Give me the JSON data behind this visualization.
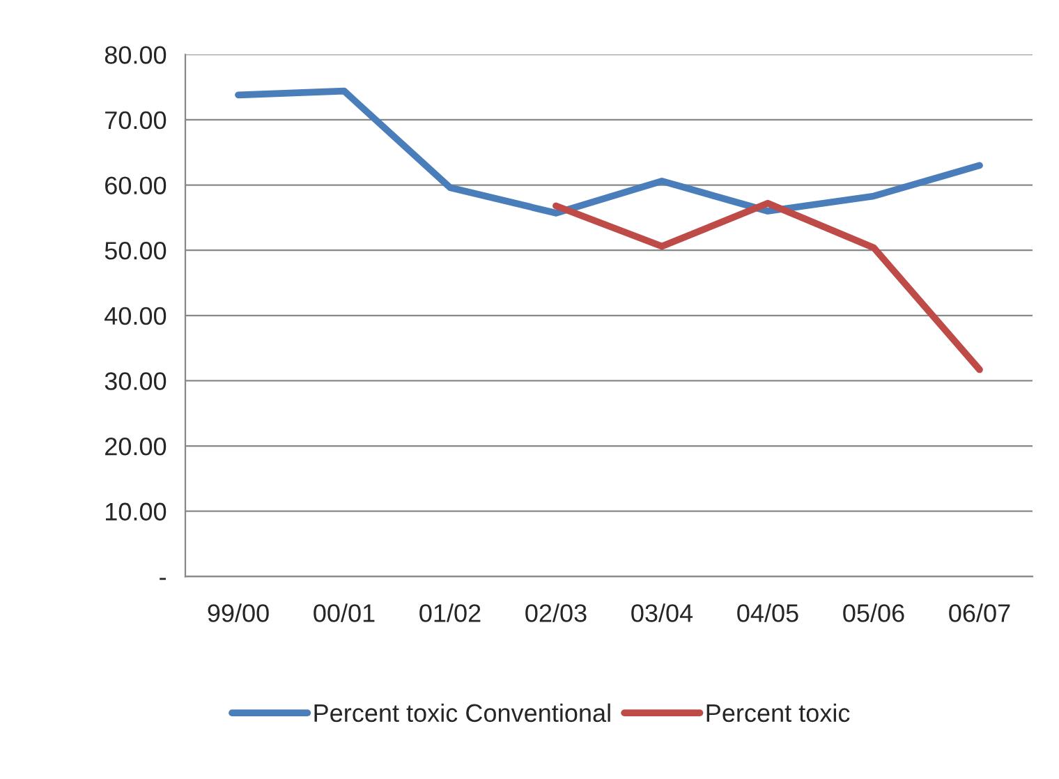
{
  "chart_data": {
    "type": "line",
    "categories": [
      "99/00",
      "00/01",
      "01/02",
      "02/03",
      "03/04",
      "04/05",
      "05/06",
      "06/07"
    ],
    "series": [
      {
        "name": "Percent toxic Conventional",
        "color": "#4a7ebb",
        "values": [
          73.8,
          74.4,
          59.6,
          55.7,
          60.6,
          56.0,
          58.3,
          63.0
        ]
      },
      {
        "name": "Percent toxic",
        "color": "#be4b48",
        "values": [
          null,
          null,
          null,
          56.8,
          50.6,
          57.2,
          50.4,
          31.7
        ]
      }
    ],
    "ylim": [
      0,
      80
    ],
    "yticks": [
      {
        "value": 0,
        "label": "-"
      },
      {
        "value": 10,
        "label": "10.00"
      },
      {
        "value": 20,
        "label": "20.00"
      },
      {
        "value": 30,
        "label": "30.00"
      },
      {
        "value": 40,
        "label": "40.00"
      },
      {
        "value": 50,
        "label": "50.00"
      },
      {
        "value": 60,
        "label": "60.00"
      },
      {
        "value": 70,
        "label": "70.00"
      },
      {
        "value": 80,
        "label": "80.00"
      }
    ],
    "grid": "y",
    "legend": "bottom",
    "marker": "none",
    "line_style": "solid"
  }
}
